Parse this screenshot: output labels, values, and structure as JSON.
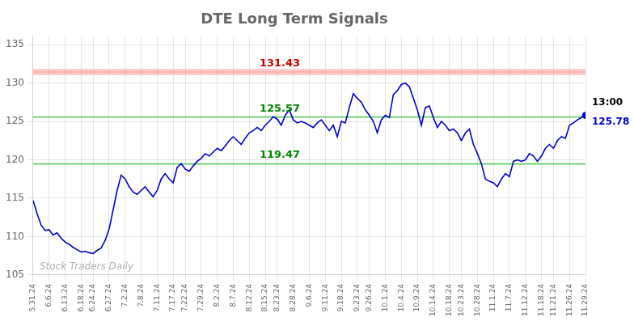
{
  "chart_data": {
    "type": "line",
    "title": "DTE Long Term Signals",
    "color": "#0000cc",
    "grid": true,
    "ylim": [
      105,
      136
    ],
    "yticks": [
      105,
      110,
      115,
      120,
      125,
      130,
      135
    ],
    "categories": [
      "5.31.24",
      null,
      null,
      null,
      "6.6.24",
      null,
      null,
      null,
      "6.13.24",
      null,
      null,
      null,
      "6.18.24",
      null,
      null,
      "6.24.24",
      null,
      null,
      null,
      "6.27.24",
      null,
      null,
      null,
      "7.2.24",
      null,
      null,
      null,
      "7.8.24",
      null,
      null,
      null,
      "7.11.24",
      null,
      null,
      null,
      "7.17.24",
      null,
      null,
      "7.22.24",
      null,
      null,
      null,
      "7.29.24",
      null,
      null,
      null,
      "8.2.24",
      null,
      null,
      null,
      "8.7.24",
      null,
      null,
      null,
      "8.12.24",
      null,
      null,
      null,
      "8.15.24",
      null,
      null,
      "8.23.24",
      null,
      null,
      null,
      "8.28.24",
      null,
      null,
      null,
      "9.6.24",
      null,
      null,
      null,
      "9.11.24",
      null,
      null,
      null,
      "9.18.24",
      null,
      null,
      null,
      "9.23.24",
      null,
      null,
      "9.26.24",
      null,
      null,
      null,
      "10.1.24",
      null,
      null,
      null,
      "10.4.24",
      null,
      null,
      null,
      "10.9.24",
      null,
      null,
      null,
      "10.14.24",
      null,
      null,
      null,
      "10.18.24",
      null,
      null,
      "10.23.24",
      null,
      null,
      null,
      "10.28.24",
      null,
      null,
      null,
      "11.1.24",
      null,
      null,
      null,
      "11.7.24",
      null,
      null,
      null,
      "11.12.24",
      null,
      null,
      null,
      "11.18.24",
      null,
      null,
      "11.21.24",
      null,
      null,
      null,
      "11.26.24",
      null,
      null,
      null,
      "11.29.24"
    ],
    "values": [
      114.7,
      113.0,
      111.5,
      110.8,
      110.9,
      110.2,
      110.5,
      109.8,
      109.3,
      109.0,
      108.6,
      108.3,
      108.0,
      108.1,
      107.9,
      107.8,
      108.2,
      108.5,
      109.5,
      111.0,
      113.5,
      116.0,
      118.0,
      117.5,
      116.5,
      115.8,
      115.5,
      116.0,
      116.5,
      115.8,
      115.2,
      116.0,
      117.5,
      118.2,
      117.5,
      117.0,
      119.0,
      119.5,
      118.8,
      118.5,
      119.2,
      119.8,
      120.2,
      120.8,
      120.5,
      121.0,
      121.5,
      121.2,
      121.8,
      122.5,
      123.0,
      122.5,
      122.0,
      122.8,
      123.5,
      123.8,
      124.2,
      123.8,
      124.5,
      125.0,
      125.6,
      125.3,
      124.5,
      125.8,
      126.5,
      125.2,
      124.8,
      125.0,
      124.8,
      124.5,
      124.2,
      124.8,
      125.2,
      124.5,
      123.8,
      124.5,
      123.0,
      125.0,
      124.8,
      126.8,
      128.6,
      128.0,
      127.5,
      126.5,
      125.8,
      125.0,
      123.5,
      125.2,
      125.8,
      125.5,
      128.5,
      129.0,
      129.8,
      130.0,
      129.5,
      128.0,
      126.5,
      124.5,
      126.8,
      127.0,
      125.5,
      124.2,
      125.0,
      124.5,
      123.8,
      124.0,
      123.5,
      122.5,
      123.5,
      124.0,
      122.0,
      120.8,
      119.5,
      117.5,
      117.2,
      117.0,
      116.5,
      117.5,
      118.2,
      117.8,
      119.8,
      120.0,
      119.8,
      120.0,
      120.8,
      120.5,
      119.8,
      120.5,
      121.5,
      122.0,
      121.5,
      122.5,
      123.0,
      122.8,
      124.5,
      124.8,
      125.2,
      125.5,
      125.78
    ],
    "hlines": [
      {
        "value": 131.43,
        "color": "#ffaaaa",
        "label_color": "#cc0000"
      },
      {
        "value": 125.57,
        "color": "#66cc66",
        "label_color": "#008800"
      },
      {
        "value": 119.47,
        "color": "#66cc66",
        "label_color": "#008800"
      }
    ],
    "annotations": [
      {
        "text": "13:00",
        "color": "#000000"
      },
      {
        "text": "125.78",
        "color": "#0000cc"
      },
      {
        "text": "Stock Traders Daily",
        "color": "#b0b0b0"
      }
    ]
  }
}
